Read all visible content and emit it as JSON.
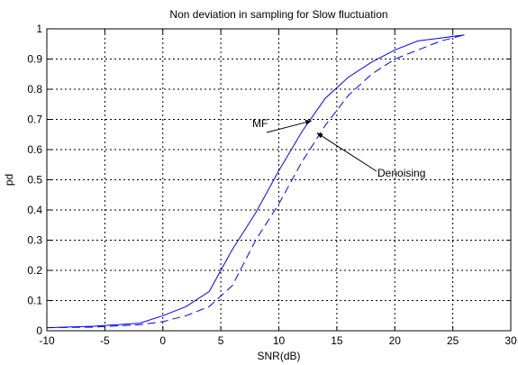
{
  "chart_data": {
    "type": "line",
    "title": "Non deviation in sampling  for Slow fluctuation",
    "xlabel": "SNR(dB)",
    "ylabel": "pd",
    "xlim": [
      -10,
      30
    ],
    "ylim": [
      0,
      1
    ],
    "xticks": [
      -10,
      -5,
      0,
      5,
      10,
      15,
      20,
      25,
      30
    ],
    "yticks": [
      0,
      0.1,
      0.2,
      0.3,
      0.4,
      0.5,
      0.6,
      0.7,
      0.8,
      0.9,
      1
    ],
    "xtick_labels": [
      "-10",
      "-5",
      "0",
      "5",
      "10",
      "15",
      "20",
      "25",
      "30"
    ],
    "ytick_labels": [
      "0",
      "0.1",
      "0.2",
      "0.3",
      "0.4",
      "0.5",
      "0.6",
      "0.7",
      "0.8",
      "0.9",
      "1"
    ],
    "grid": true,
    "series": [
      {
        "name": "MF",
        "color": "#0000ff",
        "style": "solid",
        "x": [
          -10,
          -6,
          -2,
          0,
          2,
          4,
          6,
          8,
          10,
          12,
          14,
          16,
          18,
          20,
          22,
          24,
          26
        ],
        "y": [
          0.01,
          0.015,
          0.025,
          0.05,
          0.08,
          0.13,
          0.27,
          0.39,
          0.53,
          0.66,
          0.77,
          0.84,
          0.89,
          0.93,
          0.96,
          0.97,
          0.98
        ]
      },
      {
        "name": "Denoising",
        "color": "#0000ff",
        "style": "dashed",
        "x": [
          -10,
          -6,
          -2,
          0,
          2,
          4,
          6,
          8,
          10,
          12,
          14,
          16,
          18,
          20,
          22,
          24,
          26
        ],
        "y": [
          0.01,
          0.012,
          0.02,
          0.03,
          0.05,
          0.08,
          0.15,
          0.3,
          0.42,
          0.56,
          0.68,
          0.78,
          0.85,
          0.9,
          0.93,
          0.96,
          0.98
        ]
      }
    ],
    "annotations": [
      {
        "text": "MF",
        "target_x": 12.8,
        "target_y": 0.695
      },
      {
        "text": "Denoising",
        "target_x": 13.3,
        "target_y": 0.655
      }
    ]
  }
}
